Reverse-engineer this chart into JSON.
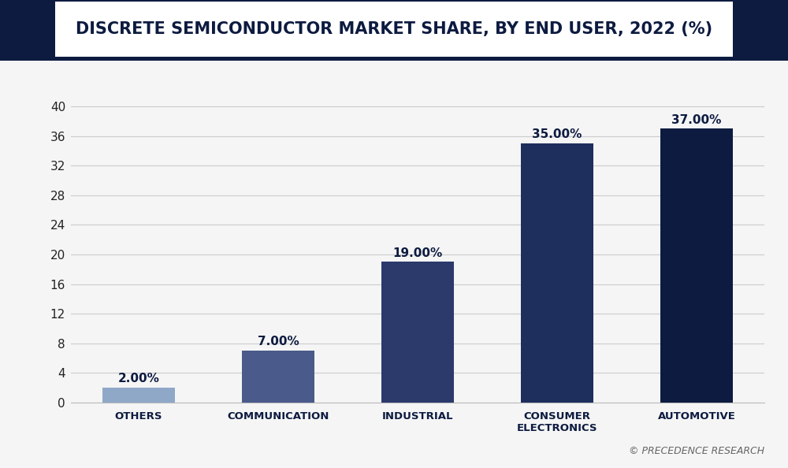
{
  "title": "DISCRETE SEMICONDUCTOR MARKET SHARE, BY END USER, 2022 (%)",
  "categories": [
    "OTHERS",
    "COMMUNICATION",
    "INDUSTRIAL",
    "CONSUMER\nELECTRONICS",
    "AUTOMOTIVE"
  ],
  "values": [
    2.0,
    7.0,
    19.0,
    35.0,
    37.0
  ],
  "labels": [
    "2.00%",
    "7.00%",
    "19.00%",
    "35.00%",
    "37.00%"
  ],
  "bar_colors": [
    "#8fa8c8",
    "#4a5a8a",
    "#2b3a6b",
    "#1e2f5e",
    "#0d1b40"
  ],
  "background_color": "#f5f5f5",
  "plot_bg_color": "#f5f5f5",
  "title_color": "#0d1b40",
  "header_bg_color": "#0d1b40",
  "header_white_bg": "#ffffff",
  "yticks": [
    0,
    4,
    8,
    12,
    16,
    20,
    24,
    28,
    32,
    36,
    40
  ],
  "ylim": [
    0,
    43
  ],
  "tick_color": "#222222",
  "grid_color": "#cccccc",
  "bar_label_color": "#0d1b40",
  "bar_label_fontsize": 11,
  "title_fontsize": 15,
  "tick_fontsize": 11,
  "xlabel_fontsize": 9.5,
  "watermark": "© PRECEDENCE RESEARCH"
}
